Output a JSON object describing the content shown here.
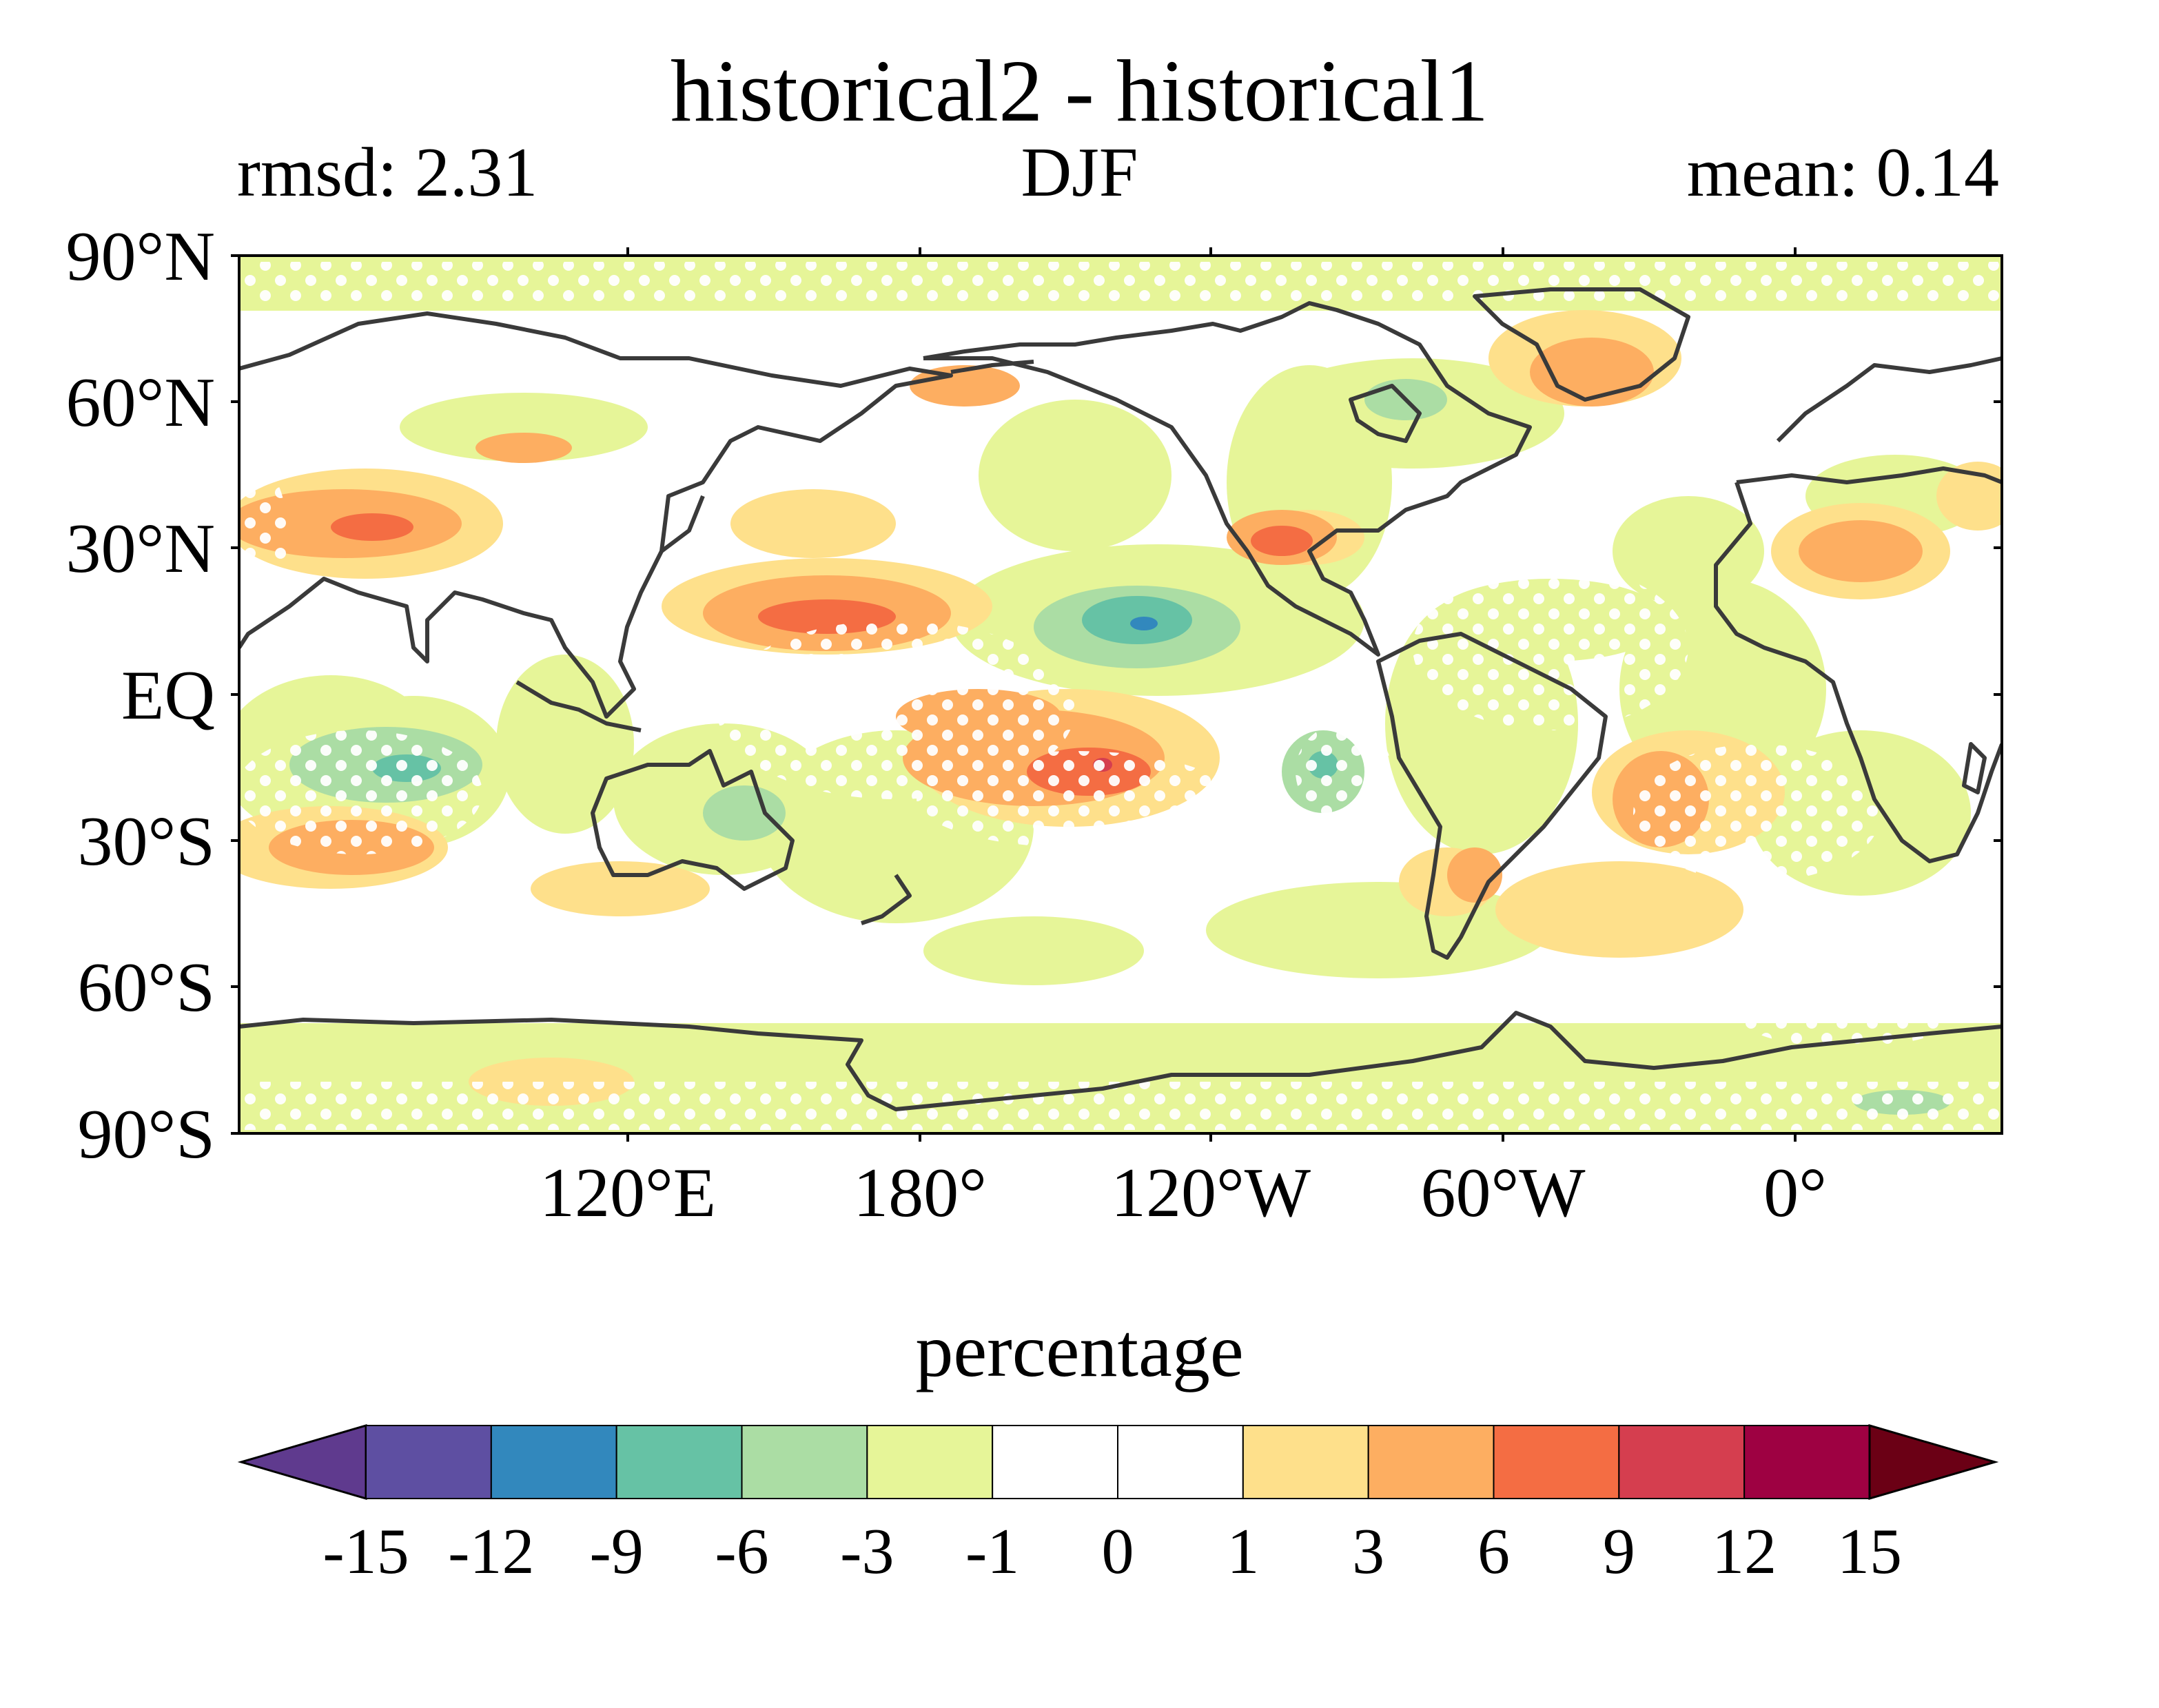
{
  "title": "historical2 - historical1",
  "subtitle_left": "rmsd: 2.31",
  "subtitle_center": "DJF",
  "subtitle_right": "mean: 0.14",
  "map": {
    "projection": "PlateCarree, central longitude 60°W-ish, domain 30°E to 30°E wrap",
    "y_ticks": [
      "90°N",
      "60°N",
      "30°N",
      "EQ",
      "30°S",
      "60°S",
      "90°S"
    ],
    "x_ticks": [
      "120°E",
      "180°",
      "120°W",
      "60°W",
      "0°"
    ],
    "stippling": "white dots indicate significance"
  },
  "colorbar": {
    "label": "percentage",
    "ticks": [
      "-15",
      "-12",
      "-9",
      "-6",
      "-3",
      "-1",
      "0",
      "1",
      "3",
      "6",
      "9",
      "12",
      "15"
    ],
    "levels": [
      -15,
      -12,
      -9,
      -6,
      -3,
      -1,
      0,
      1,
      3,
      6,
      9,
      12,
      15
    ],
    "colors": [
      "#5f3a8e",
      "#5e4fa2",
      "#3288bd",
      "#66c2a5",
      "#abdda4",
      "#e6f598",
      "#ffffff",
      "#ffffff",
      "#fee08b",
      "#fdae61",
      "#f46d43",
      "#d53e4f",
      "#9e0142",
      "#6b0015"
    ],
    "extend": "both"
  }
}
